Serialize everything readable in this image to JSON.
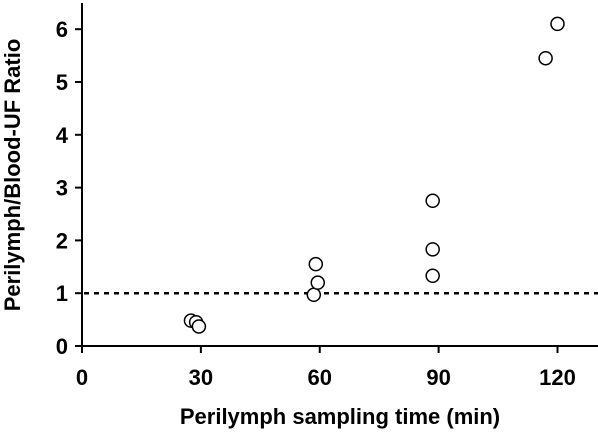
{
  "chart_data": {
    "type": "scatter",
    "xlabel": "Perilymph sampling time (min)",
    "ylabel": "Perilymph/Blood-UF Ratio",
    "xlim": [
      0,
      130
    ],
    "ylim": [
      0,
      6.5
    ],
    "xticks": [
      0,
      30,
      60,
      90,
      120
    ],
    "yticks": [
      0,
      1,
      2,
      3,
      4,
      5,
      6
    ],
    "grid": false,
    "reference_line": {
      "y": 1,
      "style": "dashed"
    },
    "points": [
      {
        "x": 27.5,
        "y": 0.48
      },
      {
        "x": 28.8,
        "y": 0.45
      },
      {
        "x": 29.5,
        "y": 0.37
      },
      {
        "x": 58.5,
        "y": 0.97
      },
      {
        "x": 59.5,
        "y": 1.2
      },
      {
        "x": 59.0,
        "y": 1.55
      },
      {
        "x": 88.5,
        "y": 1.33
      },
      {
        "x": 88.5,
        "y": 1.83
      },
      {
        "x": 88.5,
        "y": 2.75
      },
      {
        "x": 117.0,
        "y": 5.45
      },
      {
        "x": 120.0,
        "y": 6.1
      }
    ],
    "marker": {
      "shape": "open-circle",
      "stroke": "#000000",
      "fill": "#ffffff"
    }
  }
}
